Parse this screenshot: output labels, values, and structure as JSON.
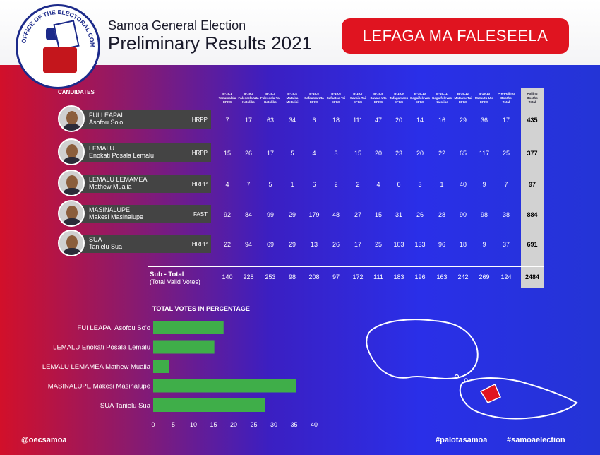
{
  "header": {
    "logo_text": "OFFICE OF THE ELECTORAL COMMISSION",
    "title_line1": "Samoa General Election",
    "title_line2": "Preliminary Results 2021",
    "constituency": "LEFAGA MA FALESEELA"
  },
  "table": {
    "candidates_label": "CANDIDATES",
    "columns": [
      [
        "B-19.1",
        "Tanumalala",
        "EFKS"
      ],
      [
        "B-19.2",
        "Faleseela-Uta",
        "Katoliko"
      ],
      [
        "B-19.3",
        "Faleseela-Tai",
        "Katoliko"
      ],
      [
        "B-19.4",
        "Matafaa",
        "Metotisi"
      ],
      [
        "B-19.5",
        "Safaatoa-Uta",
        "EFKS"
      ],
      [
        "B-19.6",
        "Safaatoa-Tai",
        "EFKS"
      ],
      [
        "B-19.7",
        "Savaia-Tai",
        "EFKS"
      ],
      [
        "B-19.8",
        "Savaia-Uta",
        "EFKS"
      ],
      [
        "B-19.9",
        "Tafagamanu",
        "EFKS"
      ],
      [
        "B-19.10",
        "Gagaifolevao",
        "EFKS"
      ],
      [
        "B-19.11",
        "Gagaifolevao",
        "Katoliko"
      ],
      [
        "B-19.12",
        "Matautu-Tai",
        "EFKS"
      ],
      [
        "B-19.13",
        "Matautu-Uta",
        "EFKS"
      ],
      [
        "Pre-Polling",
        "Booths",
        "Total"
      ]
    ],
    "total_header": [
      "Polling",
      "Booths",
      "Total"
    ],
    "candidates": [
      {
        "name": "FUI LEAPAI",
        "sub": "Asofou So'o",
        "party": "HRPP",
        "votes": [
          7,
          17,
          63,
          34,
          6,
          18,
          111,
          47,
          20,
          14,
          16,
          29,
          36,
          17
        ],
        "total": 435
      },
      {
        "name": "LEMALU",
        "sub": "Enokati Posala Lemalu",
        "party": "HRPP",
        "votes": [
          15,
          26,
          17,
          5,
          4,
          3,
          15,
          20,
          23,
          20,
          22,
          65,
          117,
          25
        ],
        "total": 377
      },
      {
        "name": "LEMALU LEMAMEA",
        "sub": "Mathew Mualia",
        "party": "HRPP",
        "votes": [
          4,
          7,
          5,
          1,
          6,
          2,
          2,
          4,
          6,
          3,
          1,
          40,
          9,
          7
        ],
        "total": 97
      },
      {
        "name": "MASINALUPE",
        "sub": "Makesi Masinalupe",
        "party": "FAST",
        "votes": [
          92,
          84,
          99,
          29,
          179,
          48,
          27,
          15,
          31,
          26,
          28,
          90,
          98,
          38
        ],
        "total": 884
      },
      {
        "name": "SUA",
        "sub": "Tanielu Sua",
        "party": "HRPP",
        "votes": [
          22,
          94,
          69,
          29,
          13,
          26,
          17,
          25,
          103,
          133,
          96,
          18,
          9,
          37
        ],
        "total": 691
      }
    ],
    "subtotal_label": "Sub - Total",
    "subtotal_sub": "(Total Valid Votes)",
    "subtotals": [
      140,
      228,
      253,
      98,
      208,
      97,
      172,
      111,
      183,
      196,
      163,
      242,
      269,
      124
    ],
    "grand_total": 2484
  },
  "chart_title": "TOTAL VOTES IN PERCENTAGE",
  "chart_data": {
    "type": "bar",
    "orientation": "horizontal",
    "title": "TOTAL VOTES IN PERCENTAGE",
    "categories": [
      "FUI LEAPAI Asofou So'o",
      "LEMALU Enokati Posala Lemalu",
      "LEMALU LEMAMEA Mathew Mualia",
      "MASINALUPE Makesi Masinalupe",
      "SUA Tanielu Sua"
    ],
    "values": [
      17.5,
      15.2,
      3.9,
      35.6,
      27.8
    ],
    "xlim": [
      0,
      40
    ],
    "xticks": [
      0,
      5,
      10,
      15,
      20,
      25,
      30,
      35,
      40
    ],
    "bar_color": "#3fae49"
  },
  "footer": {
    "left": "@oecsamoa",
    "hashtag1": "#palotasamoa",
    "hashtag2": "#samoaelection"
  },
  "colors": {
    "accent_red": "#e01420",
    "bar_green": "#3fae49",
    "total_column": "#d2d2d2"
  }
}
